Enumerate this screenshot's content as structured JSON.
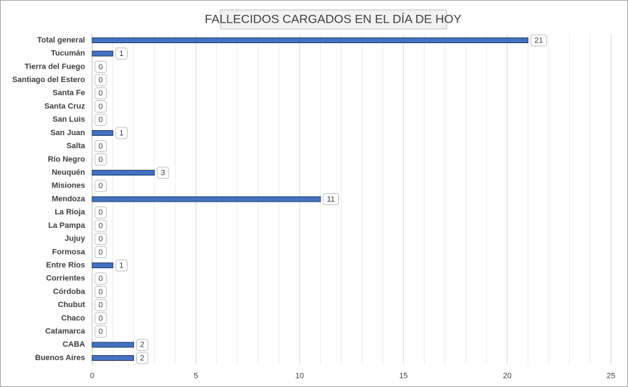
{
  "chart_data": {
    "type": "bar",
    "orientation": "horizontal",
    "title": "FALLECIDOS CARGADOS EN EL DÍA DE HOY",
    "categories": [
      "Total general",
      "Tucumán",
      "Tierra del Fuego",
      "Santiago del Estero",
      "Santa Fe",
      "Santa Cruz",
      "San Luis",
      "San Juan",
      "Salta",
      "Río Negro",
      "Neuquén",
      "Misiones",
      "Mendoza",
      "La Rioja",
      "La Pampa",
      "Jujuy",
      "Formosa",
      "Entre Ríos",
      "Corrientes",
      "Córdoba",
      "Chubut",
      "Chaco",
      "Catamarca",
      "CABA",
      "Buenos Aires"
    ],
    "values": [
      21,
      1,
      0,
      0,
      0,
      0,
      0,
      1,
      0,
      0,
      3,
      0,
      11,
      0,
      0,
      0,
      0,
      1,
      0,
      0,
      0,
      0,
      0,
      2,
      2
    ],
    "color": "#4472c4",
    "xlim": [
      0,
      25
    ],
    "xticks": [
      0,
      5,
      10,
      15,
      20,
      25
    ],
    "grid": true,
    "minor_grid": true
  }
}
